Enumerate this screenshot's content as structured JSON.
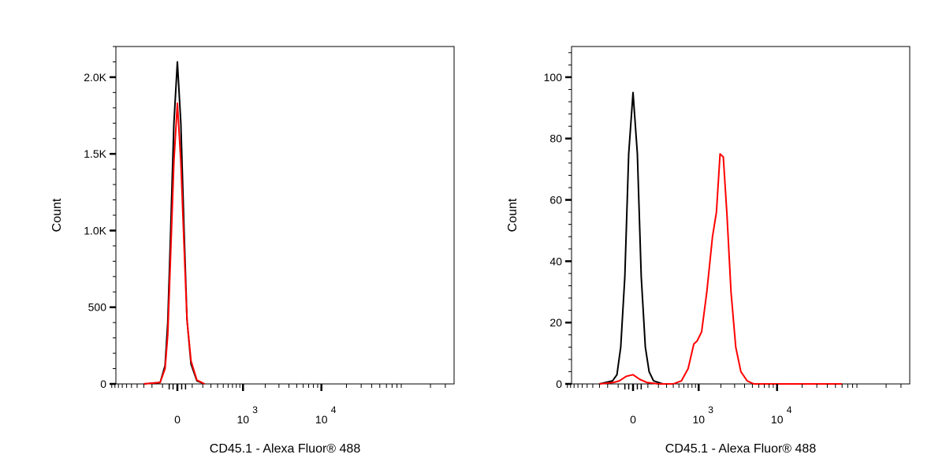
{
  "chart_data": [
    {
      "type": "line",
      "xlabel": "CD45.1 - Alexa Fluor® 488",
      "ylabel": "Count",
      "xscale": "biexponential",
      "x_ticks": [
        {
          "value": 0,
          "label": "0"
        },
        {
          "value": 1000,
          "label": "10",
          "exp": "3"
        },
        {
          "value": 10000,
          "label": "10",
          "exp": "4"
        }
      ],
      "y_ticks": [
        {
          "value": 0,
          "label": "0"
        },
        {
          "value": 500,
          "label": "500"
        },
        {
          "value": 1000,
          "label": "1.0K"
        },
        {
          "value": 1500,
          "label": "1.5K"
        },
        {
          "value": 2000,
          "label": "2.0K"
        }
      ],
      "ylim": [
        0,
        2200
      ],
      "series": [
        {
          "color": "#000000",
          "points": [
            [
              -300,
              0
            ],
            [
              -120,
              10
            ],
            [
              -80,
              120
            ],
            [
              -60,
              400
            ],
            [
              -40,
              1000
            ],
            [
              -20,
              1700
            ],
            [
              0,
              2100
            ],
            [
              20,
              1700
            ],
            [
              40,
              1000
            ],
            [
              60,
              420
            ],
            [
              90,
              130
            ],
            [
              140,
              20
            ],
            [
              220,
              0
            ]
          ]
        },
        {
          "color": "#ff0000",
          "points": [
            [
              -300,
              0
            ],
            [
              -120,
              10
            ],
            [
              -80,
              100
            ],
            [
              -60,
              320
            ],
            [
              -40,
              850
            ],
            [
              -20,
              1450
            ],
            [
              0,
              1830
            ],
            [
              20,
              1450
            ],
            [
              40,
              900
            ],
            [
              60,
              420
            ],
            [
              90,
              150
            ],
            [
              140,
              25
            ],
            [
              220,
              0
            ]
          ]
        }
      ]
    },
    {
      "type": "line",
      "xlabel": "CD45.1 - Alexa Fluor® 488",
      "ylabel": "Count",
      "xscale": "biexponential",
      "x_ticks": [
        {
          "value": 0,
          "label": "0"
        },
        {
          "value": 1000,
          "label": "10",
          "exp": "3"
        },
        {
          "value": 10000,
          "label": "10",
          "exp": "4"
        }
      ],
      "y_ticks": [
        {
          "value": 0,
          "label": "0"
        },
        {
          "value": 20,
          "label": "20"
        },
        {
          "value": 40,
          "label": "40"
        },
        {
          "value": 60,
          "label": "60"
        },
        {
          "value": 80,
          "label": "80"
        },
        {
          "value": 100,
          "label": "100"
        }
      ],
      "ylim": [
        0,
        110
      ],
      "series": [
        {
          "color": "#000000",
          "points": [
            [
              -300,
              0
            ],
            [
              -150,
              1
            ],
            [
              -110,
              3
            ],
            [
              -80,
              12
            ],
            [
              -50,
              35
            ],
            [
              -25,
              75
            ],
            [
              0,
              95
            ],
            [
              25,
              75
            ],
            [
              50,
              35
            ],
            [
              80,
              12
            ],
            [
              110,
              4
            ],
            [
              150,
              1
            ],
            [
              250,
              0
            ]
          ]
        },
        {
          "color": "#ff0000",
          "points": [
            [
              -300,
              0
            ],
            [
              -140,
              0.5
            ],
            [
              -90,
              1
            ],
            [
              -40,
              2.5
            ],
            [
              0,
              3
            ],
            [
              40,
              1.5
            ],
            [
              90,
              0.5
            ],
            [
              200,
              0
            ],
            [
              400,
              0
            ],
            [
              550,
              1
            ],
            [
              700,
              5
            ],
            [
              850,
              13
            ],
            [
              950,
              14
            ],
            [
              1100,
              17
            ],
            [
              1300,
              30
            ],
            [
              1550,
              48
            ],
            [
              1750,
              56
            ],
            [
              1950,
              75
            ],
            [
              2150,
              74
            ],
            [
              2400,
              55
            ],
            [
              2700,
              30
            ],
            [
              3100,
              12
            ],
            [
              3600,
              4
            ],
            [
              4300,
              1
            ],
            [
              5200,
              0
            ],
            [
              60000,
              0
            ]
          ]
        }
      ]
    }
  ]
}
